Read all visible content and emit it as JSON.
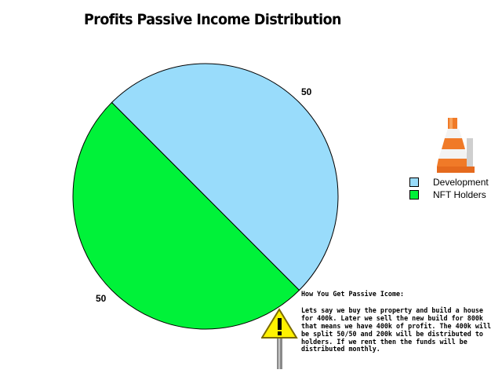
{
  "chart_data": {
    "type": "pie",
    "title": "Profits Passive Income Distribution",
    "slices": [
      {
        "label": "Development",
        "value": 50,
        "color": "#99dcfb"
      },
      {
        "label": "NFT Holders",
        "value": 50,
        "color": "#00f239"
      }
    ],
    "legend_position": "right"
  },
  "note": {
    "heading": "How You Get Passive Icome:",
    "body": "Lets say we buy the property and build a house for 400k. Later we sell the new build for 800k that means we have 400k of profit. The 400k will be split 50/50 and 200k will be distributed to holders. If we rent then the funds will be distributed monthly."
  },
  "icons": [
    "traffic-cone-icon",
    "warning-sign-icon"
  ]
}
